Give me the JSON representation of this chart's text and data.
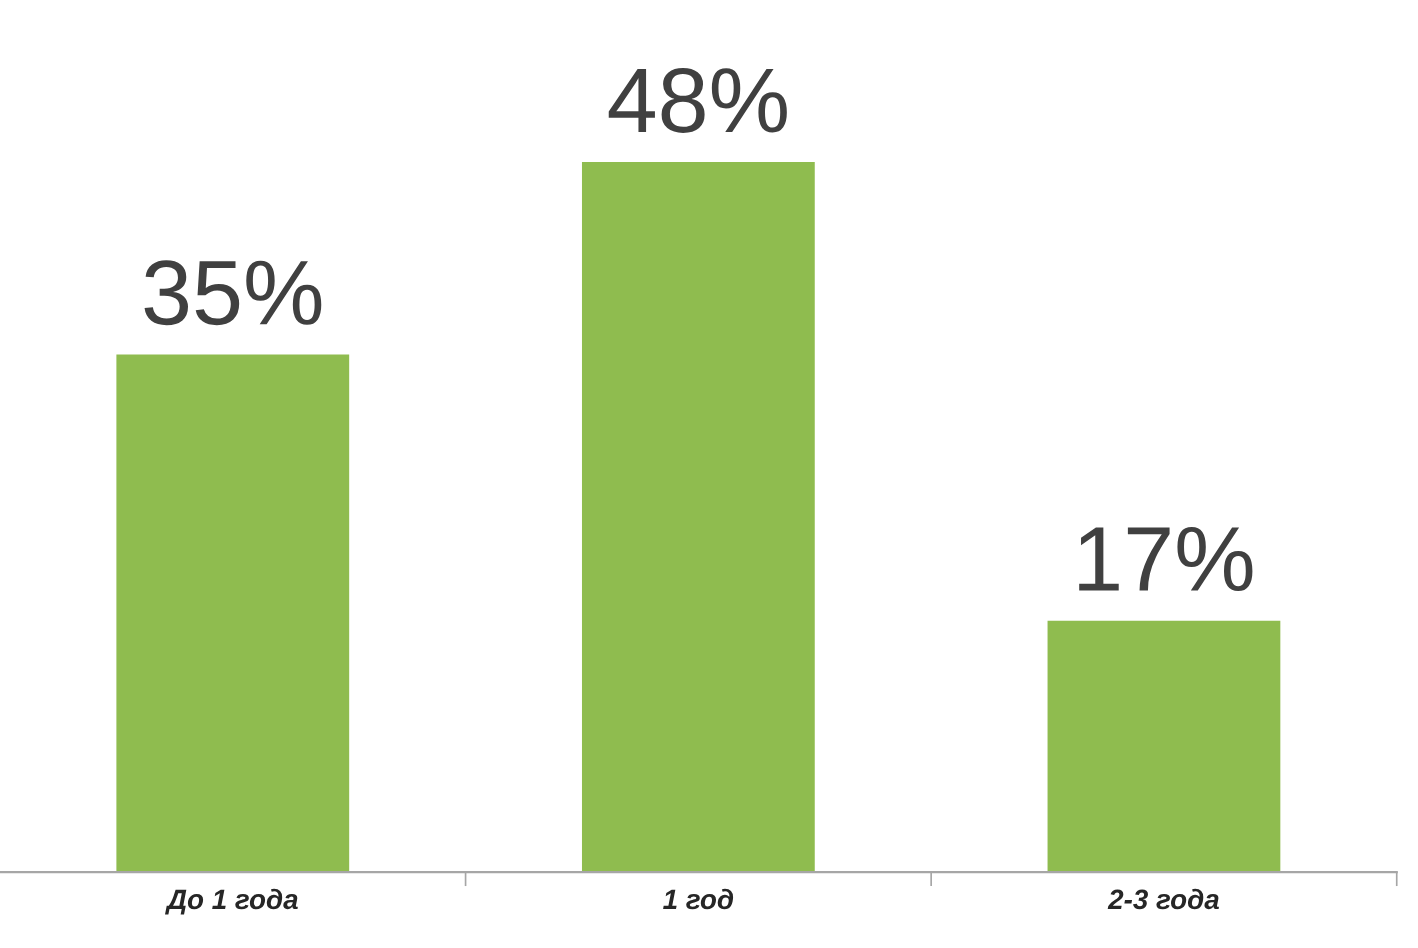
{
  "chart_data": {
    "type": "bar",
    "categories": [
      "До 1 года",
      "1 год",
      "2-3 года"
    ],
    "values": [
      35,
      48,
      17
    ],
    "value_labels": [
      "35%",
      "48%",
      "17%"
    ],
    "color": "#8fbc4f",
    "tick_labels": "x",
    "grid": false,
    "legend": false
  }
}
